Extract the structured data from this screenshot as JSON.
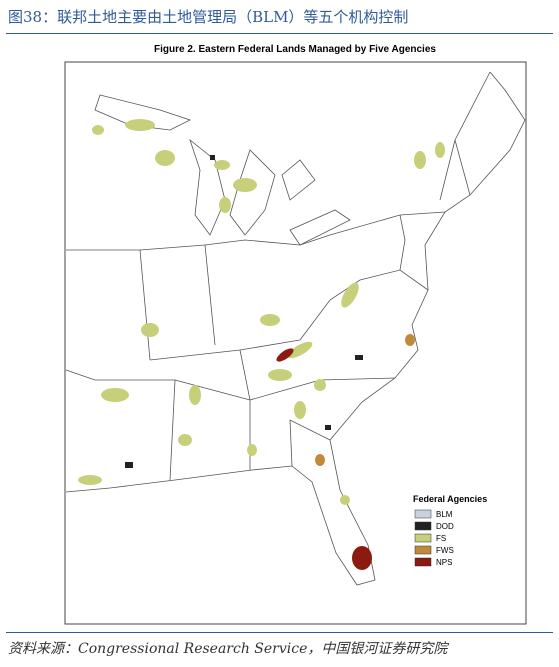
{
  "header": {
    "title": "图38：联邦土地主要由土地管理局（BLM）等五个机构控制"
  },
  "figure": {
    "title": "Figure 2. Eastern Federal Lands Managed by Five Agencies"
  },
  "legend": {
    "title": "Federal Agencies",
    "items": [
      {
        "label": "BLM",
        "color": "#c8d4dc"
      },
      {
        "label": "DOD",
        "color": "#222222"
      },
      {
        "label": "FS",
        "color": "#c8cf7a"
      },
      {
        "label": "FWS",
        "color": "#c08a3a"
      },
      {
        "label": "NPS",
        "color": "#8b1a10"
      }
    ]
  },
  "source": "资料来源：Congressional Research Service，中国银河证券研究院"
}
